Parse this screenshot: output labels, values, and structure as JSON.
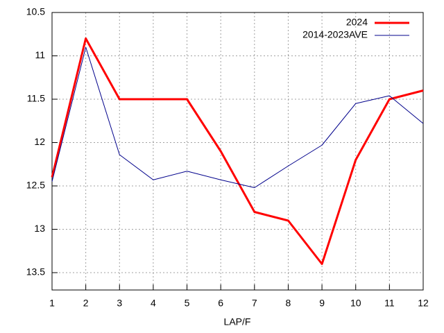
{
  "chart_data": {
    "type": "line",
    "x_label": "LAP/F",
    "x": [
      1,
      2,
      3,
      4,
      5,
      6,
      7,
      8,
      9,
      10,
      11,
      12
    ],
    "xlim": [
      1,
      12
    ],
    "xticks": [
      1,
      2,
      3,
      4,
      5,
      6,
      7,
      8,
      9,
      10,
      11,
      12
    ],
    "ylim": [
      10.5,
      13.7
    ],
    "y_reversed": true,
    "yticks": [
      10.5,
      11,
      11.5,
      12,
      12.5,
      13,
      13.5
    ],
    "grid": true,
    "legend": "top-right",
    "series": [
      {
        "name": "2024",
        "color": "#ff0000",
        "width": 3,
        "values": [
          12.4,
          10.8,
          11.5,
          11.5,
          11.5,
          12.1,
          12.8,
          12.9,
          13.4,
          12.2,
          11.5,
          11.4
        ]
      },
      {
        "name": "2014-2023AVE",
        "color": "#00008b",
        "width": 1,
        "values": [
          12.45,
          10.9,
          12.14,
          12.43,
          12.33,
          12.43,
          12.52,
          12.27,
          12.03,
          11.55,
          11.46,
          11.78
        ]
      }
    ]
  }
}
